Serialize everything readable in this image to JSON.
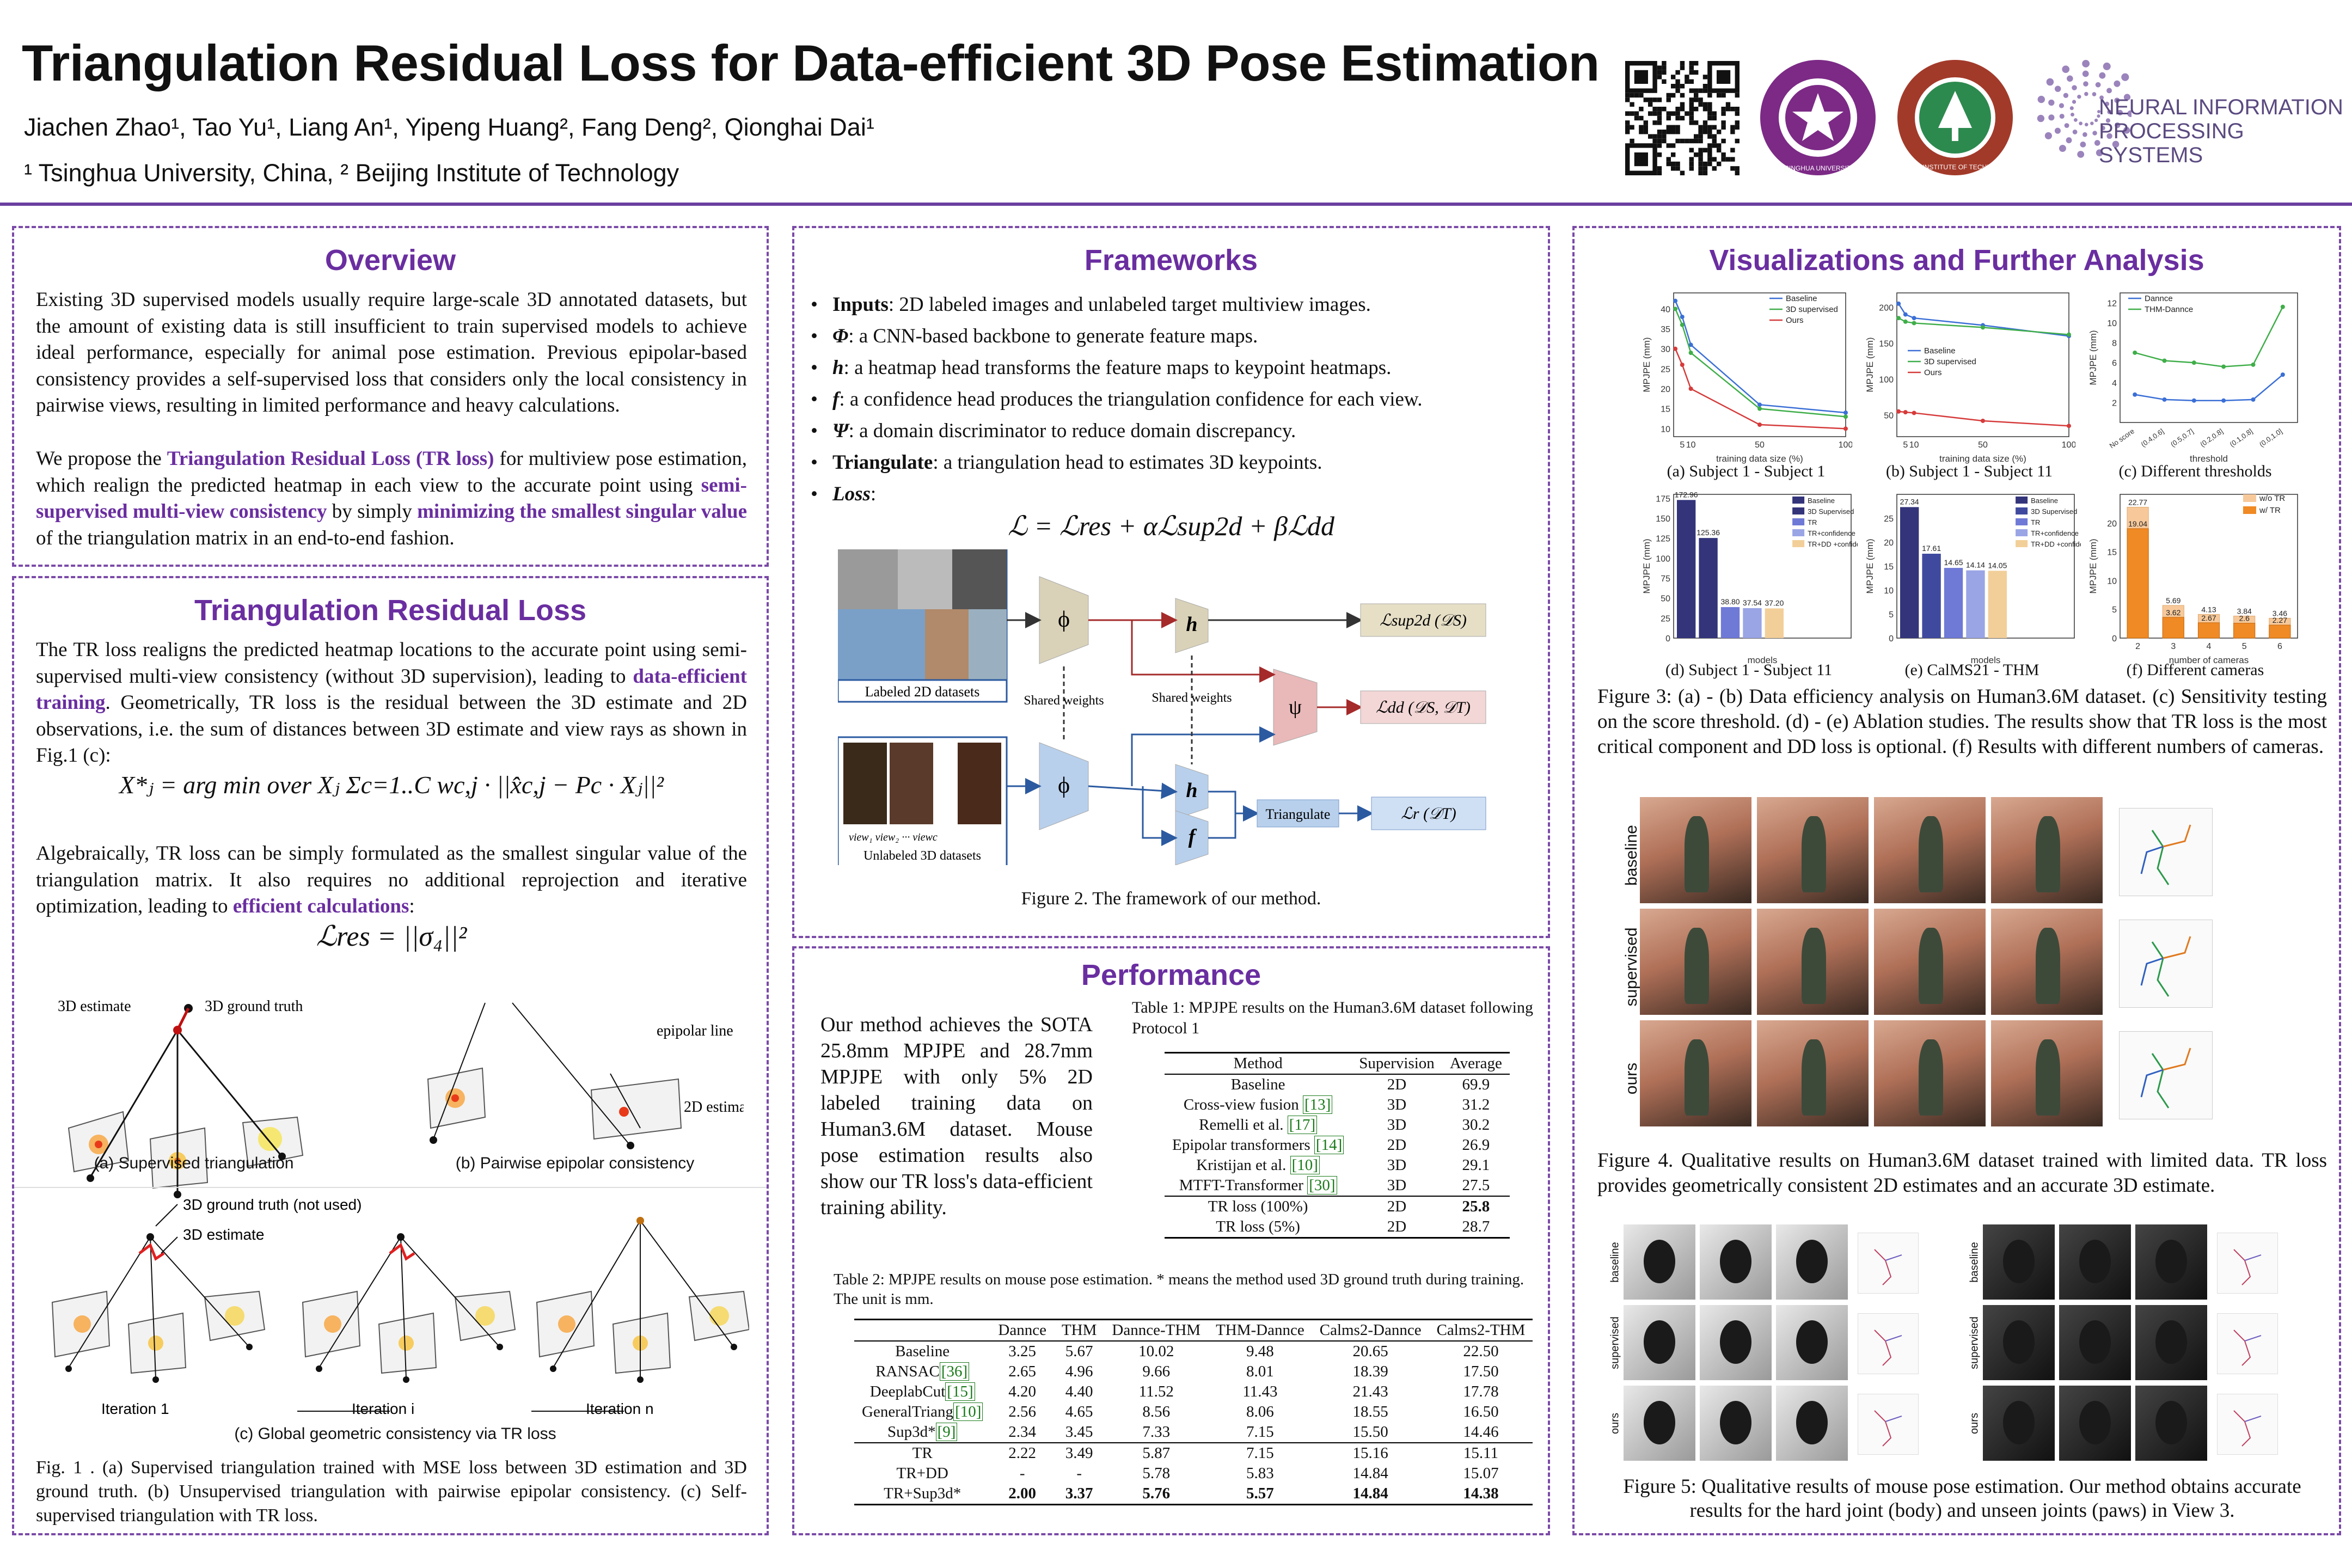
{
  "header": {
    "title": "Triangulation Residual Loss for Data-efficient 3D Pose Estimation",
    "authors": "Jiachen Zhao¹, Tao Yu¹, Liang An¹, Yipeng Huang², Fang Deng², Qionghai Dai¹",
    "affiliations": "¹ Tsinghua University, China, ² Beijing Institute of Technology",
    "logo_nips": "NEURAL INFORMATION PROCESSING SYSTEMS",
    "logo_tsinghua": "TSINGHUA UNIVERSITY",
    "logo_bit": "BEIJING INSTITUTE OF TECHNOLOGY"
  },
  "overview": {
    "title": "Overview",
    "p1": "Existing 3D supervised models usually require large-scale 3D annotated datasets, but the amount of existing data is still insufficient to train supervised models to achieve ideal performance, especially for animal pose estimation. Previous epipolar-based consistency provides a self-supervised loss that considers only the local consistency in pairwise views, resulting in limited performance and heavy calculations.",
    "p2a": "We propose the ",
    "p2b": "Triangulation Residual Loss (TR loss)",
    "p2c": " for multiview pose estimation, which realign the predicted heatmap in each view to the accurate point using ",
    "p2d": "semi-supervised multi-view consistency",
    "p2e": " by simply ",
    "p2f": "minimizing the smallest singular value",
    "p2g": " of the triangulation matrix in an end-to-end fashion."
  },
  "trl": {
    "title": "Triangulation Residual Loss",
    "p1a": "The TR loss realigns the predicted heatmap locations to the accurate point using semi-supervised multi-view consistency (without 3D supervision), leading to ",
    "p1b": "data-efficient training",
    "p1c": ". Geometrically, TR loss is the residual between the 3D estimate and 2D observations, i.e. the sum of distances between 3D estimate and view rays as shown in Fig.1 (c):",
    "eq1": "X*ⱼ = arg min over Xⱼ  Σc=1..C  wc,j · ||x̂c,j − Pc · Xⱼ||²",
    "p2a": "Algebraically, TR loss can be simply formulated as the smallest singular value of the triangulation matrix. It also requires no additional reprojection and iterative optimization, leading to ",
    "p2b": "efficient calculations",
    "p2c": ":",
    "eq2": "ℒres = ||σ₄||²",
    "fig_labels": {
      "est3d": "3D estimate",
      "gt3d": "3D ground truth",
      "epiline": "epipolar line",
      "est2d": "2D estimate",
      "gt_not_used": "3D ground truth (not used)",
      "cap_a": "(a) Supervised triangulation",
      "cap_b": "(b) Pairwise epipolar consistency",
      "cap_c": "(c) Global geometric consistency via TR loss",
      "iter1": "Iteration 1",
      "iteri": "Iteration i",
      "itern": "Iteration n"
    },
    "fig_caption": "Fig. 1 . (a) Supervised triangulation trained with MSE loss between 3D estimation and 3D ground truth. (b) Unsupervised triangulation with pairwise epipolar consistency. (c) Self-supervised triangulation with TR loss."
  },
  "frameworks": {
    "title": "Frameworks",
    "b1a": "Inputs",
    "b1b": ": 2D labeled images and unlabeled target multiview images.",
    "b2a": "Φ",
    "b2b": ": a CNN-based backbone to generate feature maps.",
    "b3a": "h",
    "b3b": ": a heatmap head transforms the feature maps to keypoint heatmaps.",
    "b4a": "f",
    "b4b": ": a confidence head produces the triangulation confidence for each view.",
    "b5a": "Ψ",
    "b5b": ": a domain discriminator to reduce domain discrepancy.",
    "b6a": "Triangulate",
    "b6b": ": a triangulation head to estimates 3D keypoints.",
    "b7a": "Loss",
    "b7b": ":",
    "loss_eq": "ℒ = ℒres + αℒsup2d + βℒdd",
    "diag": {
      "labeled": "Labeled 2D datasets",
      "unlabeled": "Unlabeled 3D datasets",
      "shared": "Shared weights",
      "shared2": "Shared weights",
      "triangulate": "Triangulate",
      "phi": "ϕ",
      "h": "h",
      "f": "f",
      "psi": "ψ",
      "lsup": "ℒsup2d (𝒟S)",
      "ldd": "ℒdd (𝒟S, 𝒟T)",
      "lr": "ℒr (𝒟T)",
      "views": "view₁  view₂  ···  viewc"
    },
    "caption": "Figure 2. The framework of our method."
  },
  "performance": {
    "title": "Performance",
    "text": "Our method achieves the SOTA 25.8mm MPJPE and 28.7mm MPJPE with only 5% 2D labeled training data on Human3.6M dataset. Mouse pose estimation results also show our TR loss's data-efficient training ability.",
    "table1_caption": "Table 1: MPJPE results on the Human3.6M dataset following Protocol 1",
    "table1_headers": [
      "Method",
      "Supervision",
      "Average"
    ],
    "table1_rows": [
      [
        "Baseline",
        "2D",
        "69.9",
        ""
      ],
      [
        "Cross-view fusion",
        "3D",
        "31.2",
        "13"
      ],
      [
        "Remelli et al.",
        "3D",
        "30.2",
        "17"
      ],
      [
        "Epipolar transformers",
        "2D",
        "26.9",
        "14"
      ],
      [
        "Kristijan et al.",
        "3D",
        "29.1",
        "10"
      ],
      [
        "MTFT-Transformer",
        "3D",
        "27.5",
        "30"
      ],
      [
        "TR loss (100%)",
        "2D",
        "25.8",
        ""
      ],
      [
        "TR loss (5%)",
        "2D",
        "28.7",
        ""
      ]
    ],
    "table2_caption": "Table 2: MPJPE results on mouse pose estimation. * means the method used 3D ground truth during training. The unit is mm.",
    "table2_headers": [
      "",
      "Dannce",
      "THM",
      "Dannce-THM",
      "THM-Dannce",
      "Calms2-Dannce",
      "Calms2-THM"
    ],
    "table2_rows": [
      [
        "Baseline",
        "",
        "3.25",
        "5.67",
        "10.02",
        "9.48",
        "20.65",
        "22.50"
      ],
      [
        "RANSAC",
        "36",
        "2.65",
        "4.96",
        "9.66",
        "8.01",
        "18.39",
        "17.50"
      ],
      [
        "DeeplabCut",
        "15",
        "4.20",
        "4.40",
        "11.52",
        "11.43",
        "21.43",
        "17.78"
      ],
      [
        "GeneralTriang",
        "10",
        "2.56",
        "4.65",
        "8.56",
        "8.06",
        "18.55",
        "16.50"
      ],
      [
        "Sup3d*",
        "9",
        "2.34",
        "3.45",
        "7.33",
        "7.15",
        "15.50",
        "14.46"
      ],
      [
        "TR",
        "",
        "2.22",
        "3.49",
        "5.87",
        "7.15",
        "15.16",
        "15.11"
      ],
      [
        "TR+DD",
        "",
        "-",
        "-",
        "5.78",
        "5.83",
        "14.84",
        "15.07"
      ],
      [
        "TR+Sup3d*",
        "",
        "2.00",
        "3.37",
        "5.76",
        "5.57",
        "14.84",
        "14.38"
      ]
    ]
  },
  "vis": {
    "title": "Visualizations  and Further Analysis",
    "sub_a": "(a) Subject 1 - Subject 1",
    "sub_b": "(b) Subject 1 - Subject 11",
    "sub_c": "(c) Different thresholds",
    "sub_d": "(d) Subject 1 - Subject 11",
    "sub_e": "(e) CalMS21 - THM",
    "sub_f": "(f) Different cameras",
    "fig3_caption": "Figure 3: (a) - (b) Data efficiency analysis on Human3.6M dataset. (c) Sensitivity testing on the score threshold. (d) - (e) Ablation studies. The results show that TR loss is the most critical component and DD loss is optional. (f) Results with different numbers of cameras.",
    "row_labels": [
      "baseline",
      "supervised",
      "ours"
    ],
    "fig4_caption": "Figure 4. Qualitative results on Human3.6M dataset trained with limited data. TR loss provides geometrically consistent 2D estimates and an accurate 3D estimate.",
    "fig5_caption": "Figure 5: Qualitative results of mouse pose estimation. Our method obtains accurate results for the hard joint (body) and unseen joints (paws) in View 3."
  },
  "chart_data": [
    {
      "type": "line",
      "id": "a",
      "title": "(a) Subject 1 - Subject 1",
      "xlabel": "training data size (%)",
      "ylabel": "MPJPE (mm)",
      "x": [
        1,
        5,
        10,
        50,
        100
      ],
      "xticks": [
        "5",
        "10",
        "50",
        "100"
      ],
      "xlim": [
        0,
        100
      ],
      "ylim": [
        8,
        44
      ],
      "yticks": [
        10,
        15,
        20,
        25,
        30,
        35,
        40
      ],
      "series": [
        {
          "name": "Baseline",
          "color": "#3b6fd6",
          "values": [
            42,
            38,
            31,
            16,
            14
          ]
        },
        {
          "name": "3D supervised",
          "color": "#3fae49",
          "values": [
            40,
            36,
            29,
            15,
            13
          ]
        },
        {
          "name": "Ours",
          "color": "#d63b3b",
          "values": [
            30,
            26,
            20,
            11,
            10
          ]
        }
      ]
    },
    {
      "type": "line",
      "id": "b",
      "title": "(b) Subject 1 - Subject 11",
      "xlabel": "training data size (%)",
      "ylabel": "MPJPE (mm)",
      "x": [
        1,
        5,
        10,
        50,
        100
      ],
      "xticks": [
        "5",
        "10",
        "50",
        "100"
      ],
      "xlim": [
        0,
        100
      ],
      "ylim": [
        20,
        220
      ],
      "yticks": [
        50,
        100,
        150,
        200
      ],
      "series": [
        {
          "name": "Baseline",
          "color": "#3b6fd6",
          "values": [
            205,
            190,
            185,
            175,
            160
          ]
        },
        {
          "name": "3D supervised",
          "color": "#3fae49",
          "values": [
            185,
            180,
            178,
            172,
            162
          ]
        },
        {
          "name": "Ours",
          "color": "#d63b3b",
          "values": [
            55,
            54,
            53,
            42,
            35
          ]
        }
      ]
    },
    {
      "type": "line",
      "id": "c",
      "title": "(c) Different thresholds",
      "xlabel": "threshold",
      "ylabel": "MPJPE (mm)",
      "xticks": [
        "No score",
        "(0.4,0.6]",
        "(0.5,0.7]",
        "(0.2,0.8]",
        "(0.1,0.8]",
        "(0.0,1.0]"
      ],
      "ylim": [
        0,
        13
      ],
      "yticks": [
        2,
        4,
        6,
        8,
        10,
        12
      ],
      "series": [
        {
          "name": "Dannce",
          "color": "#3b6fd6",
          "values": [
            2.8,
            2.3,
            2.2,
            2.2,
            2.3,
            4.8
          ]
        },
        {
          "name": "THM-Dannce",
          "color": "#3fae49",
          "values": [
            7.0,
            6.2,
            6.0,
            5.6,
            5.8,
            11.6
          ]
        }
      ]
    },
    {
      "type": "bar",
      "id": "d",
      "title": "(d) Subject 1 - Subject 11",
      "xlabel": "models",
      "ylabel": "MPJPE (mm)",
      "ylim": [
        0,
        180
      ],
      "yticks": [
        0,
        25,
        50,
        75,
        100,
        125,
        150,
        175
      ],
      "categories": [
        "Baseline",
        "3D Supervised",
        "TR",
        "TR+confidence",
        "TR+DD +confidence"
      ],
      "values": [
        172.96,
        125.36,
        38.8,
        37.54,
        37.2
      ],
      "colors": [
        "#33347a",
        "#33347a",
        "#6f79d6",
        "#9aa5e6",
        "#f2cf99"
      ]
    },
    {
      "type": "bar",
      "id": "e",
      "title": "(e) CalMS21 - THM",
      "xlabel": "models",
      "ylabel": "MPJPE (mm)",
      "ylim": [
        0,
        30
      ],
      "yticks": [
        0,
        5,
        10,
        15,
        20,
        25
      ],
      "categories": [
        "Baseline",
        "3D Supervised",
        "TR",
        "TR+confidence",
        "TR+DD +confidence"
      ],
      "values": [
        27.34,
        17.61,
        14.65,
        14.14,
        14.05
      ],
      "colors": [
        "#33347a",
        "#3f4a9e",
        "#6f79d6",
        "#9aa5e6",
        "#f2cf99"
      ]
    },
    {
      "type": "bar",
      "id": "f",
      "title": "(f) Different cameras",
      "xlabel": "number of cameras",
      "ylabel": "MPJPE (mm)",
      "ylim": [
        0,
        25
      ],
      "yticks": [
        0,
        5,
        10,
        15,
        20
      ],
      "categories": [
        "2",
        "3",
        "4",
        "5",
        "6"
      ],
      "series": [
        {
          "name": "w/o TR",
          "color": "#f7c99a",
          "values": [
            22.77,
            5.69,
            4.13,
            3.84,
            3.46
          ]
        },
        {
          "name": "w/ TR",
          "color": "#f08a24",
          "values": [
            19.04,
            3.62,
            2.67,
            2.6,
            2.27
          ]
        }
      ]
    }
  ]
}
